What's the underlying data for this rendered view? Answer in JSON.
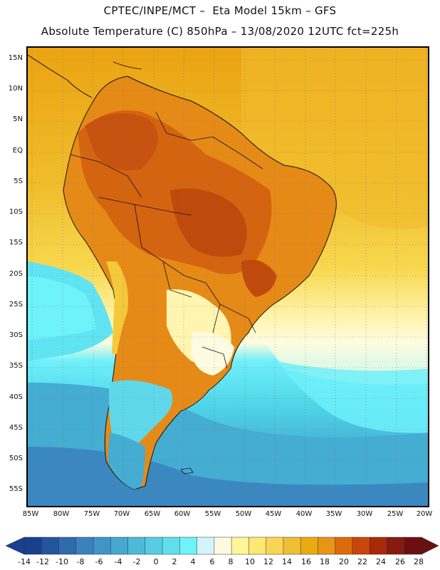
{
  "header": {
    "line1": "CPTEC/INPE/MCT –  Eta Model 15km – GFS",
    "line2": "Absolute Temperature (C) 850hPa – 13/08/2020 12UTC fct=225h"
  },
  "map": {
    "region": "South America",
    "variable": "Absolute Temperature (C) 850hPa",
    "lat_labels": [
      "15N",
      "10N",
      "5N",
      "EQ",
      "5S",
      "10S",
      "15S",
      "20S",
      "25S",
      "30S",
      "35S",
      "40S",
      "45S",
      "50S",
      "55S"
    ],
    "lon_labels": [
      "85W",
      "80W",
      "75W",
      "70W",
      "65W",
      "60W",
      "55W",
      "50W",
      "45W",
      "40W",
      "35W",
      "30W",
      "25W",
      "20W"
    ]
  },
  "colorbar": {
    "labels": [
      "-14",
      "-12",
      "-10",
      "-8",
      "-6",
      "-4",
      "-2",
      "0",
      "2",
      "4",
      "6",
      "8",
      "10",
      "12",
      "14",
      "16",
      "18",
      "20",
      "22",
      "24",
      "26",
      "28"
    ],
    "colors": [
      "#1a3f8f",
      "#22559e",
      "#2f6aad",
      "#3b82bd",
      "#3f95c6",
      "#45a8cf",
      "#4fbad8",
      "#56cde3",
      "#5fdfee",
      "#6ff2fa",
      "#d5f4fa",
      "#fff9e0",
      "#fff59a",
      "#fde873",
      "#f8d655",
      "#f0be35",
      "#ebaa12",
      "#e89516",
      "#dd6a0c",
      "#c8460c",
      "#a8280a",
      "#851a10",
      "#6b0f10"
    ]
  }
}
